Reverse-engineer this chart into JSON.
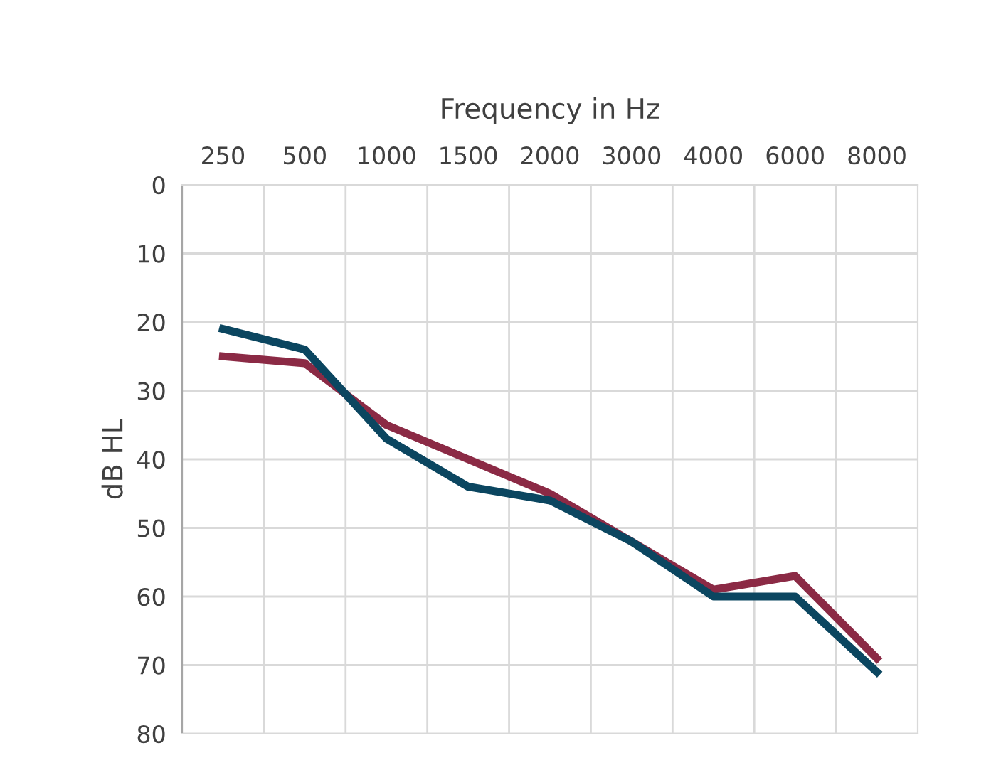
{
  "chart_data": {
    "type": "line",
    "xlabel": "Frequency in Hz",
    "ylabel": "dB HL",
    "categories": [
      "250",
      "500",
      "1000",
      "1500",
      "2000",
      "3000",
      "4000",
      "6000",
      "8000"
    ],
    "series": [
      {
        "color": "#8b2a45",
        "values": [
          25,
          26,
          35,
          40,
          45,
          52,
          59,
          57,
          69
        ]
      },
      {
        "color": "#0b4660",
        "values": [
          21,
          24,
          37,
          44,
          46,
          52,
          60,
          60,
          71
        ]
      }
    ],
    "ylim": [
      80,
      0
    ],
    "yticks": [
      0,
      10,
      20,
      30,
      40,
      50,
      60,
      70,
      80
    ],
    "grid": true,
    "legend": false,
    "marker": "none",
    "line_style": "solid"
  }
}
